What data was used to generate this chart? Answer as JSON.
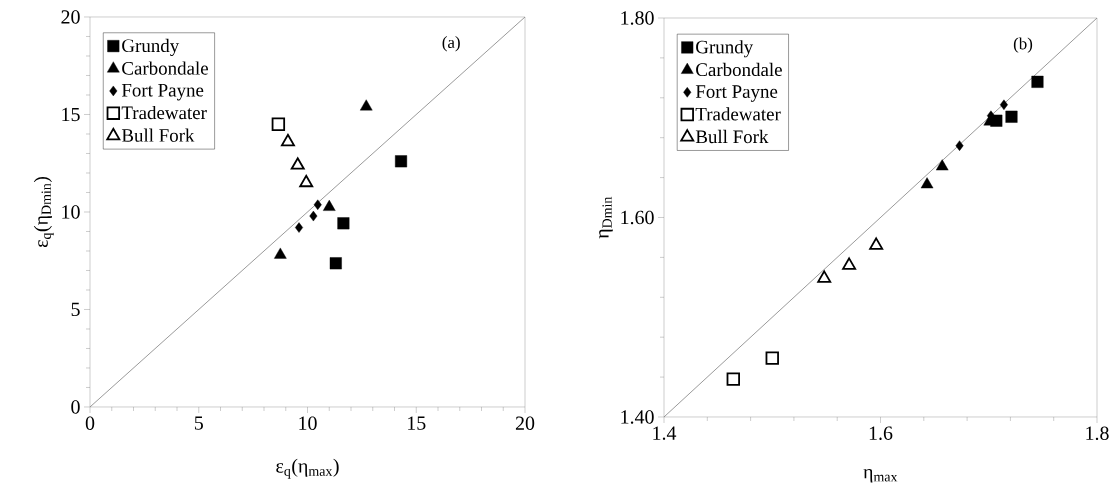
{
  "chart_data": [
    {
      "type": "scatter",
      "xlabel": "ε$_{q}$(η$_{max}$)",
      "ylabel": "ε$_{q}$(η$_{Dmin}$)",
      "annotations": [
        "(a)"
      ],
      "xlim": [
        0,
        20
      ],
      "ylim": [
        0,
        20
      ],
      "xticks": [
        0,
        5,
        10,
        15,
        20
      ],
      "yticks": [
        0,
        5,
        10,
        15,
        20
      ],
      "grid": false,
      "legend": "top left",
      "series": [
        {
          "type": "line",
          "color": "#808080",
          "x": [
            0,
            20
          ],
          "values": [
            0,
            20
          ],
          "marker": "none"
        },
        {
          "name": "Grundy",
          "color": "#000000",
          "marker": "square",
          "x": [
            14.3,
            11.65,
            11.3
          ],
          "values": [
            12.6,
            9.42,
            7.37
          ]
        },
        {
          "name": "Carbondale",
          "color": "#000000",
          "marker": "triangle",
          "x": [
            12.7,
            11.0,
            8.75
          ],
          "values": [
            15.4,
            10.25,
            7.8
          ]
        },
        {
          "name": "Fort Payne",
          "color": "#000000",
          "marker": "diamond",
          "x": [
            10.47,
            10.27,
            9.61
          ],
          "values": [
            10.37,
            9.79,
            9.2
          ]
        },
        {
          "name": "Tradewater",
          "color": "#000000",
          "marker": "square",
          "x": [
            8.66
          ],
          "values": [
            14.5
          ]
        },
        {
          "name": "Bull Fork",
          "color": "#000000",
          "marker": "triangle",
          "x": [
            9.1,
            9.55,
            9.94
          ],
          "values": [
            13.6,
            12.4,
            11.5
          ]
        }
      ]
    },
    {
      "type": "scatter",
      "xlabel": "η$_{max}$",
      "ylabel": "η$_{Dmin}$",
      "annotations": [
        "(b)"
      ],
      "xlim": [
        1.4,
        1.8
      ],
      "ylim": [
        1.4,
        1.8
      ],
      "xticks": [
        1.4,
        1.6,
        1.8
      ],
      "yticks": [
        {
          "value": 1.4,
          "label": "1.40"
        },
        {
          "value": 1.6,
          "label": "1.60"
        },
        {
          "value": 1.8,
          "label": "1.80"
        }
      ],
      "grid": false,
      "legend": "top left",
      "series": [
        {
          "type": "line",
          "color": "#808080",
          "x": [
            1.4,
            1.8
          ],
          "values": [
            1.4,
            1.8
          ],
          "marker": "none"
        },
        {
          "name": "Grundy",
          "color": "#000000",
          "marker": "square",
          "x": [
            1.745,
            1.721,
            1.707
          ],
          "values": [
            1.736,
            1.701,
            1.697
          ]
        },
        {
          "name": "Carbondale",
          "color": "#000000",
          "marker": "triangle",
          "x": [
            1.643,
            1.657,
            1.701
          ],
          "values": [
            1.633,
            1.651,
            1.696
          ]
        },
        {
          "name": "Fort Payne",
          "color": "#000000",
          "marker": "diamond",
          "x": [
            1.673,
            1.714,
            1.702
          ],
          "values": [
            1.672,
            1.713,
            1.702
          ]
        },
        {
          "name": "Tradewater",
          "color": "#000000",
          "marker": "square",
          "x": [
            1.464,
            1.5
          ],
          "values": [
            1.438,
            1.459
          ]
        },
        {
          "name": "Bull Fork",
          "color": "#000000",
          "marker": "triangle",
          "x": [
            1.548,
            1.571,
            1.596
          ],
          "values": [
            1.539,
            1.552,
            1.572
          ]
        }
      ]
    }
  ]
}
